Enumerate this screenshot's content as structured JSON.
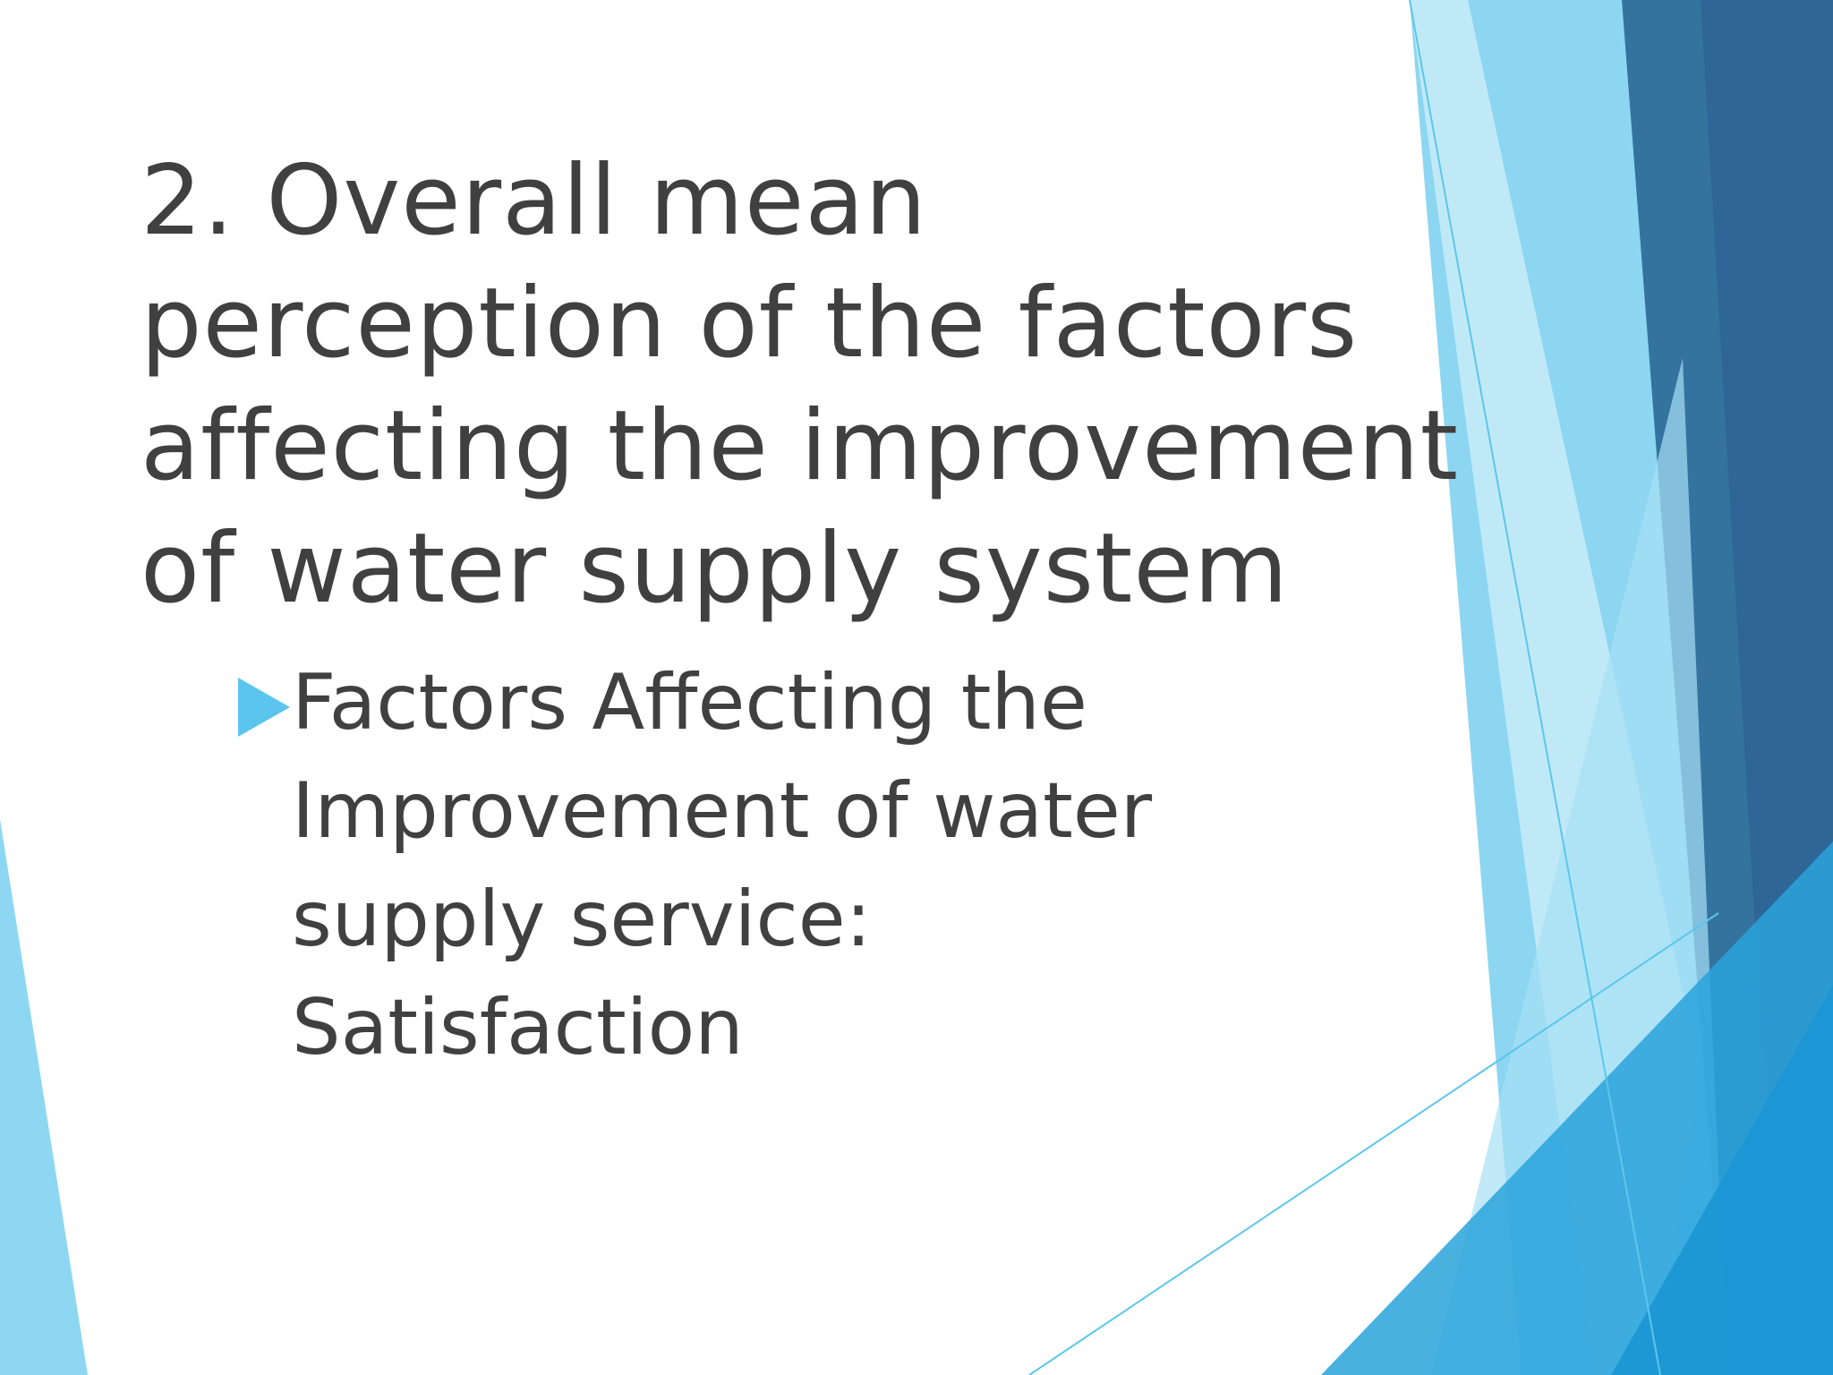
{
  "slide": {
    "title_lines": [
      "2. Overall mean",
      "perception of the factors",
      "affecting the improvement",
      "of water supply system"
    ],
    "bullet": {
      "lines": [
        "Factors Affecting the",
        "Improvement of water",
        "supply service:",
        "Satisfaction"
      ]
    }
  }
}
